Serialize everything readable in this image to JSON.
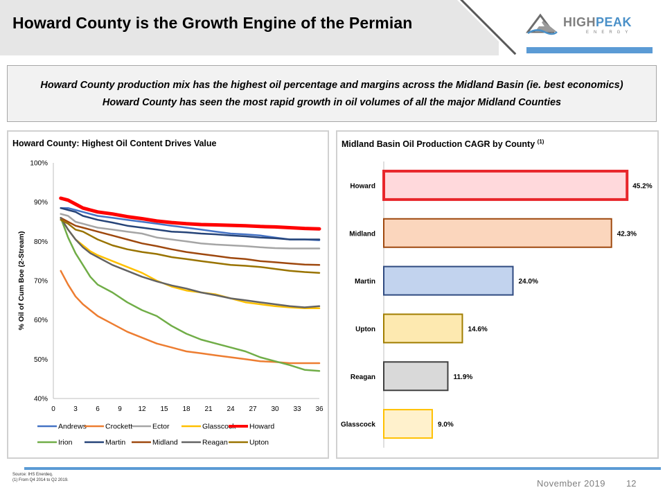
{
  "header": {
    "title": "Howard County is the Growth Engine of the Permian",
    "logo_main": "HIGH",
    "logo_accent": "PEAK",
    "logo_sub": "ENERGY"
  },
  "summary": {
    "line1": "Howard County production mix has the highest oil percentage and margins across the Midland Basin (ie. best economics)",
    "line2": "Howard County has seen the most rapid growth in oil volumes of all the major Midland Counties"
  },
  "left_panel": {
    "title": "Howard County: Highest Oil Content Drives Value"
  },
  "right_panel": {
    "title": "Midland Basin Oil Production CAGR by County",
    "title_note": "(1)"
  },
  "footer": {
    "source": "Source: IHS Enerdeq.",
    "note": "(1)    From Q4 2014 to Q2 2019.",
    "date": "November 2019",
    "page": "12"
  },
  "chart_data": [
    {
      "type": "line",
      "ylabel": "% Oil of Cum Boe (2-Stream)",
      "ylim": [
        40,
        100
      ],
      "yticks": [
        "40%",
        "50%",
        "60%",
        "70%",
        "80%",
        "90%",
        "100%"
      ],
      "xlim": [
        0,
        36
      ],
      "xticks": [
        "0",
        "3",
        "6",
        "9",
        "12",
        "15",
        "18",
        "21",
        "24",
        "27",
        "30",
        "33",
        "36"
      ],
      "legend_position": "bottom",
      "x": [
        1,
        2,
        3,
        4,
        5,
        6,
        8,
        10,
        12,
        14,
        16,
        18,
        20,
        22,
        24,
        26,
        28,
        30,
        32,
        34,
        36
      ],
      "series": [
        {
          "name": "Andrews",
          "color": "#4472c4",
          "width": 2.5,
          "values": [
            88.5,
            88.5,
            88,
            87.5,
            87,
            86.5,
            86,
            85.5,
            85,
            84.5,
            84,
            83.5,
            83,
            82.5,
            82,
            81.8,
            81.5,
            81,
            80.5,
            80.5,
            80.3
          ]
        },
        {
          "name": "Crockett",
          "color": "#ed7d31",
          "width": 2.5,
          "values": [
            72.5,
            69,
            66,
            64,
            62.5,
            61,
            59,
            57,
            55.5,
            54,
            53,
            52,
            51.5,
            51,
            50.5,
            50,
            49.5,
            49.3,
            49,
            49,
            49
          ]
        },
        {
          "name": "Ector",
          "color": "#a5a5a5",
          "width": 2.5,
          "values": [
            87,
            86.5,
            85,
            84.5,
            84,
            83.5,
            83,
            82.5,
            82,
            81,
            80.5,
            80,
            79.5,
            79.2,
            79,
            78.8,
            78.5,
            78.3,
            78.2,
            78.2,
            78.2
          ]
        },
        {
          "name": "Glasscock",
          "color": "#ffc000",
          "width": 2.5,
          "values": [
            86,
            83,
            80.5,
            79,
            77.5,
            76.5,
            75,
            73.5,
            72,
            70,
            68.5,
            67.5,
            67,
            66.5,
            65.5,
            64.5,
            64,
            63.5,
            63.2,
            63,
            63
          ]
        },
        {
          "name": "Howard",
          "color": "#ff0000",
          "width": 5,
          "values": [
            91,
            90.5,
            89.5,
            88.5,
            88,
            87.5,
            87,
            86.3,
            85.8,
            85.2,
            84.8,
            84.5,
            84.3,
            84.2,
            84.1,
            84,
            83.8,
            83.7,
            83.5,
            83.3,
            83.2
          ]
        },
        {
          "name": "Irion",
          "color": "#70ad47",
          "width": 2.5,
          "values": [
            86,
            81,
            77,
            74,
            71,
            69,
            67,
            64.5,
            62.5,
            61,
            58.5,
            56.5,
            55,
            54,
            53,
            52,
            50.5,
            49.5,
            48.5,
            47.3,
            47
          ]
        },
        {
          "name": "Martin",
          "color": "#264478",
          "width": 2.5,
          "values": [
            88.5,
            88,
            87.5,
            86.5,
            86,
            85.5,
            84.8,
            84,
            83.5,
            83,
            82.5,
            82.3,
            82,
            81.8,
            81.5,
            81.3,
            81,
            80.8,
            80.5,
            80.5,
            80.5
          ]
        },
        {
          "name": "Midland",
          "color": "#9e480e",
          "width": 2.5,
          "values": [
            86,
            85,
            84,
            83.5,
            83,
            82.5,
            81.5,
            80.5,
            79.5,
            78.8,
            78,
            77.3,
            76.8,
            76.3,
            75.8,
            75.5,
            75,
            74.7,
            74.4,
            74.1,
            74
          ]
        },
        {
          "name": "Reagan",
          "color": "#636363",
          "width": 2.5,
          "values": [
            86,
            83,
            80.5,
            78.5,
            77,
            76,
            74,
            72.5,
            71,
            69.8,
            68.8,
            68,
            67,
            66.3,
            65.5,
            65,
            64.5,
            64,
            63.5,
            63.2,
            63.5
          ]
        },
        {
          "name": "Upton",
          "color": "#997300",
          "width": 2.5,
          "values": [
            85.5,
            84.5,
            83,
            82.5,
            81.5,
            80.5,
            79,
            78,
            77.3,
            76.8,
            76,
            75.5,
            75,
            74.5,
            74,
            73.8,
            73.5,
            73,
            72.5,
            72.2,
            72
          ]
        }
      ]
    },
    {
      "type": "bar",
      "orientation": "horizontal",
      "categories": [
        "Howard",
        "Midland",
        "Martin",
        "Upton",
        "Reagan",
        "Glasscock"
      ],
      "values": [
        45.2,
        42.3,
        24.0,
        14.6,
        11.9,
        9.0
      ],
      "labels": [
        "45.2%",
        "42.3%",
        "24.0%",
        "14.6%",
        "11.9%",
        "9.0%"
      ],
      "fills": [
        "#ffd9dc",
        "#fbd6bd",
        "#c2d3ee",
        "#fde9b0",
        "#d9d9d9",
        "#fff1cc"
      ],
      "borders": [
        "#e8262b",
        "#9e480e",
        "#2f4a80",
        "#a07d00",
        "#404040",
        "#ffc000"
      ],
      "xlim": [
        0,
        48
      ]
    }
  ]
}
